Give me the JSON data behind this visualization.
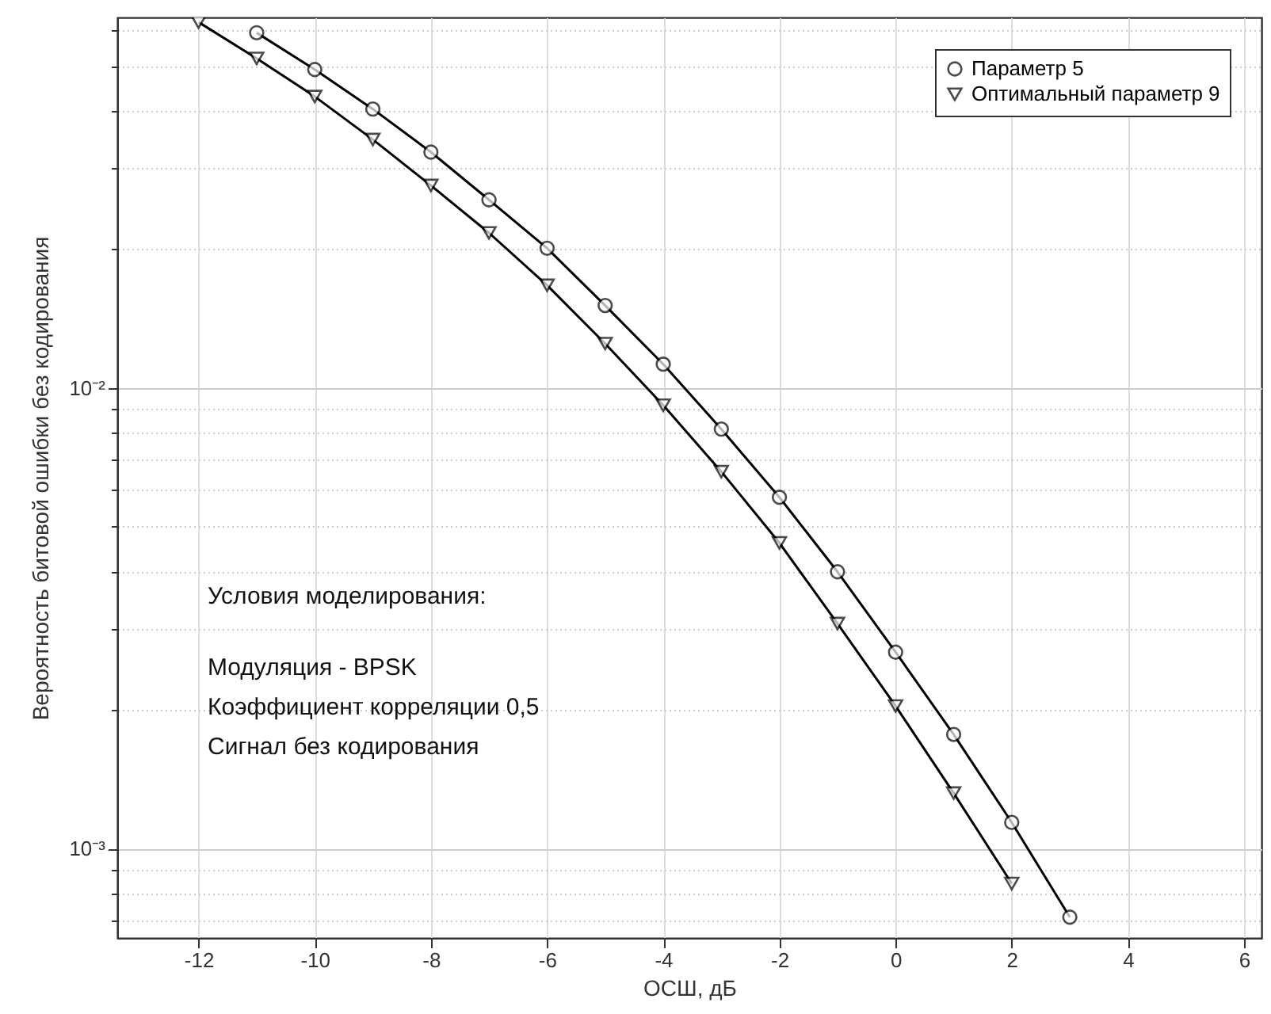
{
  "chart_data": {
    "type": "line",
    "xlabel": "ОСШ, дБ",
    "ylabel": "Вероятность битовой ошибки без кодирования",
    "log": "y",
    "grid": true,
    "legend": "top right",
    "xlim": [
      -13.4,
      6.3
    ],
    "xticks": [
      -12,
      -10,
      -8,
      -6,
      -4,
      -2,
      0,
      2,
      4,
      6
    ],
    "ylim": [
      0.00064,
      0.0637
    ],
    "yticks": [
      {
        "value": 0.0007,
        "label": null
      },
      {
        "value": 0.0008,
        "label": null
      },
      {
        "value": 0.0009,
        "label": null
      },
      {
        "value": 0.001,
        "label": "10⁻³"
      },
      {
        "value": 0.002,
        "label": null
      },
      {
        "value": 0.003,
        "label": null
      },
      {
        "value": 0.004,
        "label": null
      },
      {
        "value": 0.005,
        "label": null
      },
      {
        "value": 0.006,
        "label": null
      },
      {
        "value": 0.007,
        "label": null
      },
      {
        "value": 0.008,
        "label": null
      },
      {
        "value": 0.009,
        "label": null
      },
      {
        "value": 0.01,
        "label": "10⁻²"
      },
      {
        "value": 0.02,
        "label": null
      },
      {
        "value": 0.03,
        "label": null
      },
      {
        "value": 0.04,
        "label": null
      },
      {
        "value": 0.05,
        "label": null
      },
      {
        "value": 0.06,
        "label": null
      }
    ],
    "series": [
      {
        "name": "Параметр 5",
        "color": "#000000",
        "marker": "circle",
        "line_style": "solid",
        "x": [
          -11,
          -10,
          -9,
          -8,
          -7,
          -6,
          -5,
          -4,
          -3,
          -2,
          -1,
          0,
          1,
          2,
          3
        ],
        "values": [
          0.059,
          0.0491,
          0.0403,
          0.0325,
          0.0256,
          0.0201,
          0.0151,
          0.01126,
          0.00814,
          0.00579,
          0.00399,
          0.00267,
          0.00177,
          0.00114,
          0.00071
        ]
      },
      {
        "name": "Оптимальный параметр 9",
        "color": "#000000",
        "marker": "triangle",
        "line_style": "solid",
        "x": [
          -12,
          -11,
          -10,
          -9,
          -8,
          -7,
          -6,
          -5,
          -4,
          -3,
          -2,
          -1,
          0,
          1,
          2
        ],
        "values": [
          0.0622,
          0.0519,
          0.0429,
          0.0346,
          0.0275,
          0.0217,
          0.0167,
          0.01248,
          0.00917,
          0.00658,
          0.00461,
          0.00308,
          0.00204,
          0.00132,
          0.00084
        ]
      }
    ],
    "annotations": [
      "Условия моделирования:",
      "Модуляция - BPSK",
      "Коэффициент корреляции 0,5",
      "Сигнал без кодирования"
    ]
  }
}
